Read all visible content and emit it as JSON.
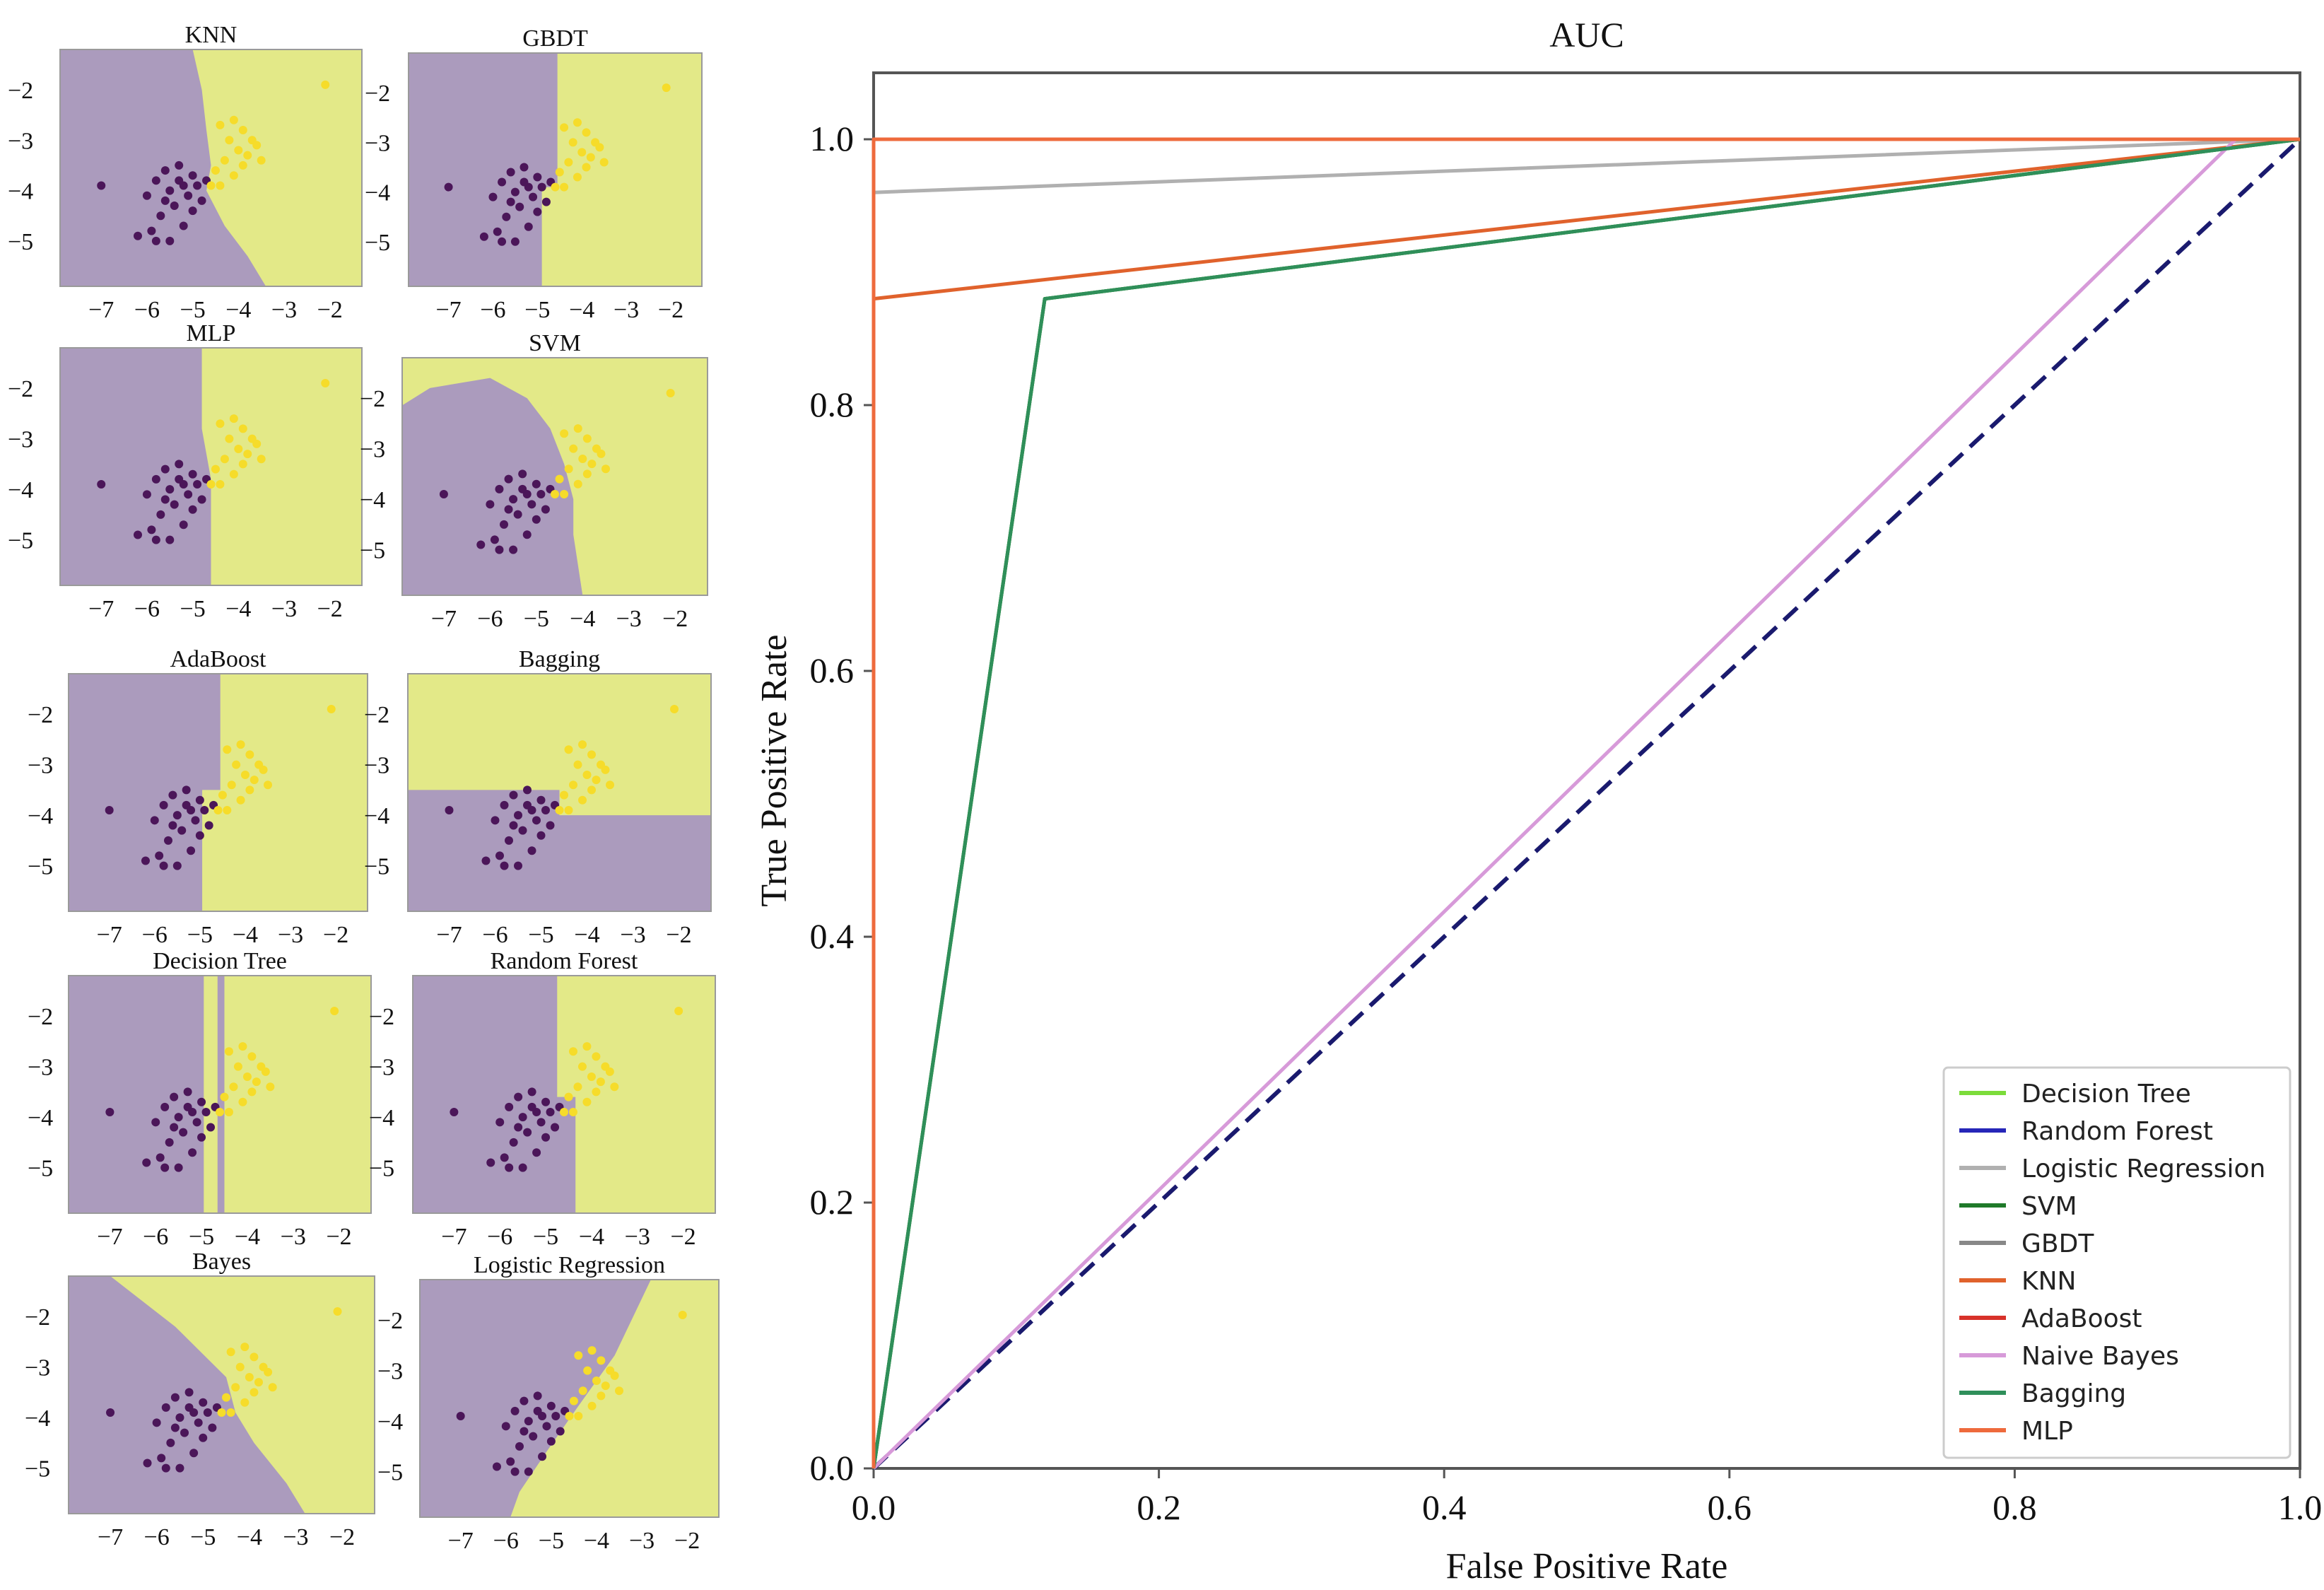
{
  "chart_data": [
    {
      "type": "scatter",
      "title": "KNN",
      "x_ticks": [
        "−7",
        "−6",
        "−5",
        "−4",
        "−3",
        "−2"
      ],
      "y_ticks": [
        "−2",
        "−3",
        "−4",
        "−5"
      ],
      "xlim": [
        -7.9,
        -1.3
      ],
      "ylim": [
        -5.9,
        -1.2
      ],
      "decision_boundary": [
        [
          -5.0,
          -1.2
        ],
        [
          -4.8,
          -2.0
        ],
        [
          -4.7,
          -2.8
        ],
        [
          -4.6,
          -3.5
        ],
        [
          -4.7,
          -4.0
        ],
        [
          -4.3,
          -4.7
        ],
        [
          -3.8,
          -5.3
        ],
        [
          -3.4,
          -5.9
        ]
      ]
    },
    {
      "type": "scatter",
      "title": "GBDT",
      "x_ticks": [
        "−7",
        "−6",
        "−5",
        "−4",
        "−3",
        "−2"
      ],
      "y_ticks": [
        "−2",
        "−3",
        "−4",
        "−5"
      ],
      "xlim": [
        -7.9,
        -1.3
      ],
      "ylim": [
        -5.9,
        -1.2
      ],
      "decision_boundary": [
        [
          -4.55,
          -1.2
        ],
        [
          -4.55,
          -3.9
        ],
        [
          -4.9,
          -3.9
        ],
        [
          -4.9,
          -5.9
        ]
      ]
    },
    {
      "type": "scatter",
      "title": "MLP",
      "x_ticks": [
        "−7",
        "−6",
        "−5",
        "−4",
        "−3",
        "−2"
      ],
      "y_ticks": [
        "−2",
        "−3",
        "−4",
        "−5"
      ],
      "xlim": [
        -7.9,
        -1.3
      ],
      "ylim": [
        -5.9,
        -1.2
      ],
      "decision_boundary": [
        [
          -4.8,
          -1.2
        ],
        [
          -4.8,
          -2.8
        ],
        [
          -4.6,
          -3.8
        ],
        [
          -4.6,
          -5.9
        ]
      ]
    },
    {
      "type": "scatter",
      "title": "SVM",
      "x_ticks": [
        "−7",
        "−6",
        "−5",
        "−4",
        "−3",
        "−2"
      ],
      "y_ticks": [
        "−2",
        "−3",
        "−4",
        "−5"
      ],
      "xlim": [
        -7.9,
        -1.3
      ],
      "ylim": [
        -5.9,
        -1.2
      ],
      "decision_boundary": [
        [
          -8.0,
          -2.2
        ],
        [
          -7.3,
          -1.8
        ],
        [
          -6.0,
          -1.6
        ],
        [
          -5.2,
          -2.0
        ],
        [
          -4.7,
          -2.6
        ],
        [
          -4.4,
          -3.3
        ],
        [
          -4.2,
          -4.0
        ],
        [
          -4.2,
          -4.7
        ],
        [
          -4.0,
          -5.9
        ]
      ]
    },
    {
      "type": "scatter",
      "title": "AdaBoost",
      "x_ticks": [
        "−7",
        "−6",
        "−5",
        "−4",
        "−3",
        "−2"
      ],
      "y_ticks": [
        "−2",
        "−3",
        "−4",
        "−5"
      ],
      "xlim": [
        -7.9,
        -1.3
      ],
      "ylim": [
        -5.9,
        -1.2
      ],
      "decision_boundary": [
        [
          -4.55,
          -1.2
        ],
        [
          -4.55,
          -3.5
        ],
        [
          -4.95,
          -3.5
        ],
        [
          -4.95,
          -5.9
        ]
      ]
    },
    {
      "type": "scatter",
      "title": "Bagging",
      "x_ticks": [
        "−7",
        "−6",
        "−5",
        "−4",
        "−3",
        "−2"
      ],
      "y_ticks": [
        "−2",
        "−3",
        "−4",
        "−5"
      ],
      "xlim": [
        -7.9,
        -1.3
      ],
      "ylim": [
        -5.9,
        -1.2
      ],
      "decision_boundary": [
        [
          -7.9,
          -3.5
        ],
        [
          -4.6,
          -3.5
        ],
        [
          -4.6,
          -4.0
        ],
        [
          -1.3,
          -4.0
        ]
      ]
    },
    {
      "type": "scatter",
      "title": "Decision Tree",
      "x_ticks": [
        "−7",
        "−6",
        "−5",
        "−4",
        "−3",
        "−2"
      ],
      "y_ticks": [
        "−2",
        "−3",
        "−4",
        "−5"
      ],
      "xlim": [
        -7.9,
        -1.3
      ],
      "ylim": [
        -5.9,
        -1.2
      ],
      "decision_boundary": [
        [
          -4.95,
          -1.2
        ],
        [
          -4.95,
          -5.9
        ]
      ],
      "secondary_band": [
        -4.65,
        -4.5
      ]
    },
    {
      "type": "scatter",
      "title": "Random Forest",
      "x_ticks": [
        "−7",
        "−6",
        "−5",
        "−4",
        "−3",
        "−2"
      ],
      "y_ticks": [
        "−2",
        "−3",
        "−4",
        "−5"
      ],
      "xlim": [
        -7.9,
        -1.3
      ],
      "ylim": [
        -5.9,
        -1.2
      ],
      "decision_boundary": [
        [
          -4.75,
          -1.2
        ],
        [
          -4.75,
          -3.6
        ],
        [
          -4.35,
          -3.6
        ],
        [
          -4.35,
          -5.9
        ]
      ]
    },
    {
      "type": "scatter",
      "title": "Bayes",
      "x_ticks": [
        "−7",
        "−6",
        "−5",
        "−4",
        "−3",
        "−2"
      ],
      "y_ticks": [
        "−2",
        "−3",
        "−4",
        "−5"
      ],
      "xlim": [
        -7.9,
        -1.3
      ],
      "ylim": [
        -5.9,
        -1.2
      ],
      "decision_boundary": [
        [
          -7.0,
          -1.2
        ],
        [
          -5.6,
          -2.2
        ],
        [
          -4.5,
          -3.2
        ],
        [
          -4.3,
          -3.9
        ],
        [
          -3.9,
          -4.5
        ],
        [
          -3.2,
          -5.3
        ],
        [
          -2.8,
          -5.9
        ]
      ]
    },
    {
      "type": "scatter",
      "title": "Logistic Regression",
      "x_ticks": [
        "−7",
        "−6",
        "−5",
        "−4",
        "−3",
        "−2"
      ],
      "y_ticks": [
        "−2",
        "−3",
        "−4",
        "−5"
      ],
      "xlim": [
        -7.9,
        -1.3
      ],
      "ylim": [
        -5.9,
        -1.2
      ],
      "decision_boundary": [
        [
          -2.8,
          -1.2
        ],
        [
          -3.6,
          -2.7
        ],
        [
          -4.4,
          -3.7
        ],
        [
          -5.1,
          -4.6
        ],
        [
          -5.7,
          -5.4
        ],
        [
          -5.9,
          -5.9
        ]
      ]
    },
    {
      "type": "line",
      "title": "AUC",
      "xlabel": "False Positive Rate",
      "ylabel": "True Positive Rate",
      "xlim": [
        0,
        1
      ],
      "ylim": [
        0,
        1.05
      ],
      "x_ticks": [
        "0.0",
        "0.2",
        "0.4",
        "0.6",
        "0.8",
        "1.0"
      ],
      "y_ticks": [
        "0.0",
        "0.2",
        "0.4",
        "0.6",
        "0.8",
        "1.0"
      ],
      "legend_position": "lower-right",
      "series": [
        {
          "name": "Decision Tree",
          "color": "#7cdc3a",
          "x": [
            0,
            0.12,
            1
          ],
          "y": [
            0,
            0.88,
            1
          ]
        },
        {
          "name": "Random Forest",
          "color": "#2626b8",
          "x": [
            0,
            0,
            1
          ],
          "y": [
            0,
            1,
            1
          ]
        },
        {
          "name": "Logistic Regression",
          "color": "#b0b0b0",
          "x": [
            0,
            0,
            1
          ],
          "y": [
            0,
            0.96,
            1
          ]
        },
        {
          "name": "SVM",
          "color": "#1f7a2a",
          "x": [
            0,
            0.12,
            1
          ],
          "y": [
            0,
            0.88,
            1
          ]
        },
        {
          "name": "GBDT",
          "color": "#888888",
          "x": [
            0,
            0,
            1
          ],
          "y": [
            0,
            1,
            1
          ]
        },
        {
          "name": "KNN",
          "color": "#e0622c",
          "x": [
            0,
            0,
            1
          ],
          "y": [
            0,
            0.88,
            1
          ]
        },
        {
          "name": "AdaBoost",
          "color": "#d8322a",
          "x": [
            0,
            0,
            1
          ],
          "y": [
            0,
            1,
            1
          ]
        },
        {
          "name": "Naive Bayes",
          "color": "#d79ad9",
          "x": [
            0,
            0.955,
            1
          ],
          "y": [
            0,
            1,
            1
          ]
        },
        {
          "name": "Bagging",
          "color": "#2f8f5a",
          "x": [
            0,
            0.12,
            1
          ],
          "y": [
            0,
            0.88,
            1
          ]
        },
        {
          "name": "MLP",
          "color": "#ee6a3c",
          "x": [
            0,
            0,
            1
          ],
          "y": [
            0,
            1,
            1
          ]
        }
      ],
      "reference_line": {
        "x": [
          0,
          1
        ],
        "y": [
          0,
          1
        ],
        "color": "#1a1a6e",
        "style": "dashed"
      }
    }
  ],
  "colors": {
    "region_class0": "#ab9bbd",
    "region_class1": "#e3e988",
    "points_class0": "#4b1659",
    "points_class1": "#f6dc2a"
  }
}
